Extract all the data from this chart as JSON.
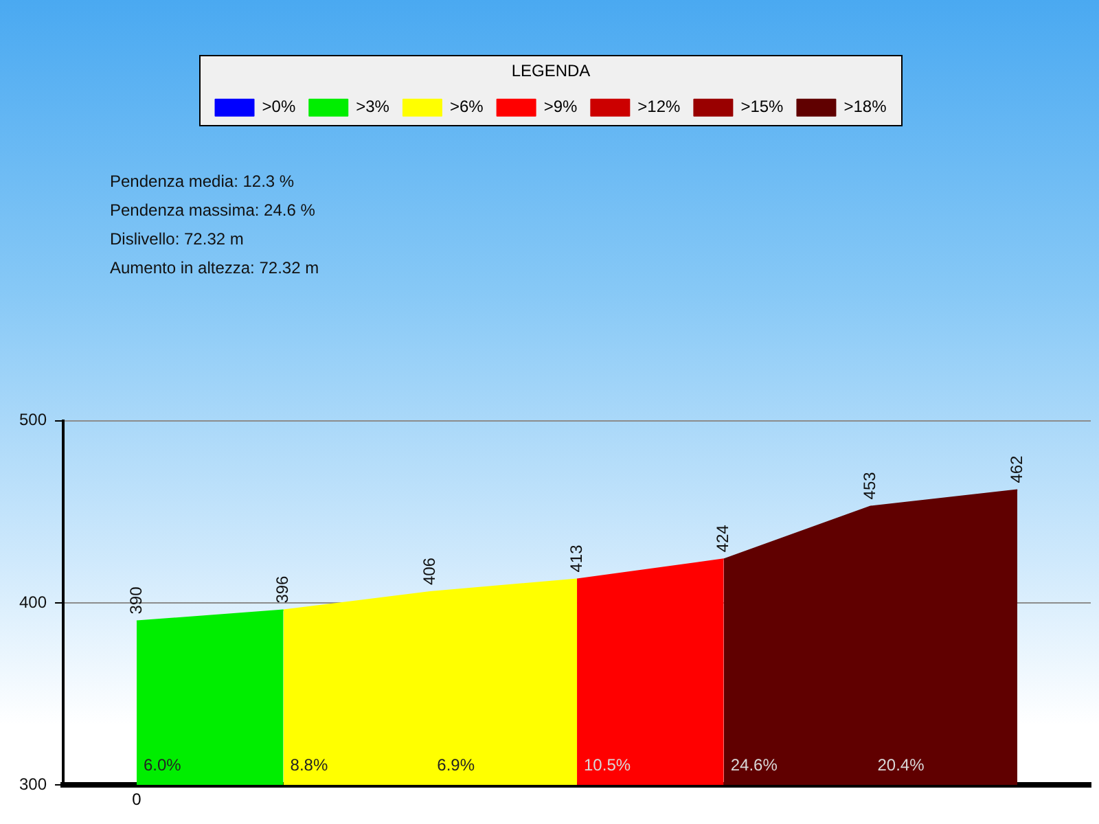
{
  "chart_data": {
    "type": "area",
    "categories": [
      "0",
      null,
      null,
      null,
      null,
      null,
      null
    ],
    "series": [
      {
        "name": ">0%",
        "color": "#0000ff",
        "values": [
          null,
          null,
          null,
          null,
          null,
          null,
          null
        ]
      },
      {
        "name": ">3%",
        "color": "#00ee00",
        "values": [
          390,
          396,
          null,
          null,
          null,
          null,
          null
        ],
        "value_labels": [
          "390",
          "396",
          null,
          null,
          null,
          null,
          null
        ]
      },
      {
        "name": ">6%",
        "color": "#ffff00",
        "values": [
          null,
          396,
          406,
          413,
          null,
          null,
          null
        ],
        "value_labels": [
          null,
          null,
          "406",
          "413",
          null,
          null,
          null
        ]
      },
      {
        "name": ">9%",
        "color": "#ff0000",
        "values": [
          null,
          null,
          null,
          413,
          424,
          null,
          null
        ],
        "value_labels": [
          null,
          null,
          null,
          null,
          "424",
          null,
          null
        ]
      },
      {
        "name": ">12%",
        "color": "#cc0000",
        "values": [
          null,
          null,
          null,
          null,
          null,
          null,
          null
        ]
      },
      {
        "name": ">15%",
        "color": "#990000",
        "values": [
          null,
          null,
          null,
          null,
          null,
          null,
          null
        ]
      },
      {
        "name": ">18%",
        "color": "#600000",
        "values": [
          null,
          null,
          null,
          null,
          424,
          453,
          462
        ],
        "value_labels": [
          null,
          null,
          null,
          null,
          null,
          "453",
          "462"
        ]
      }
    ],
    "ylim": [
      300,
      500
    ],
    "yticks": [
      300,
      400,
      500
    ],
    "grid": "y",
    "legend": "top",
    "legend_title": "LEGENDA",
    "annotations": [
      "Pendenza media: 12.3 %",
      "Pendenza massima: 24.6 %",
      "Dislivello: 72.32 m",
      "Aumento in altezza: 72.32 m",
      {
        "text": "6.0%"
      },
      {
        "text": "8.8%"
      },
      {
        "text": "6.9%"
      },
      {
        "text": "10.5%"
      },
      {
        "text": "24.6%"
      },
      {
        "text": "20.4%"
      }
    ]
  }
}
